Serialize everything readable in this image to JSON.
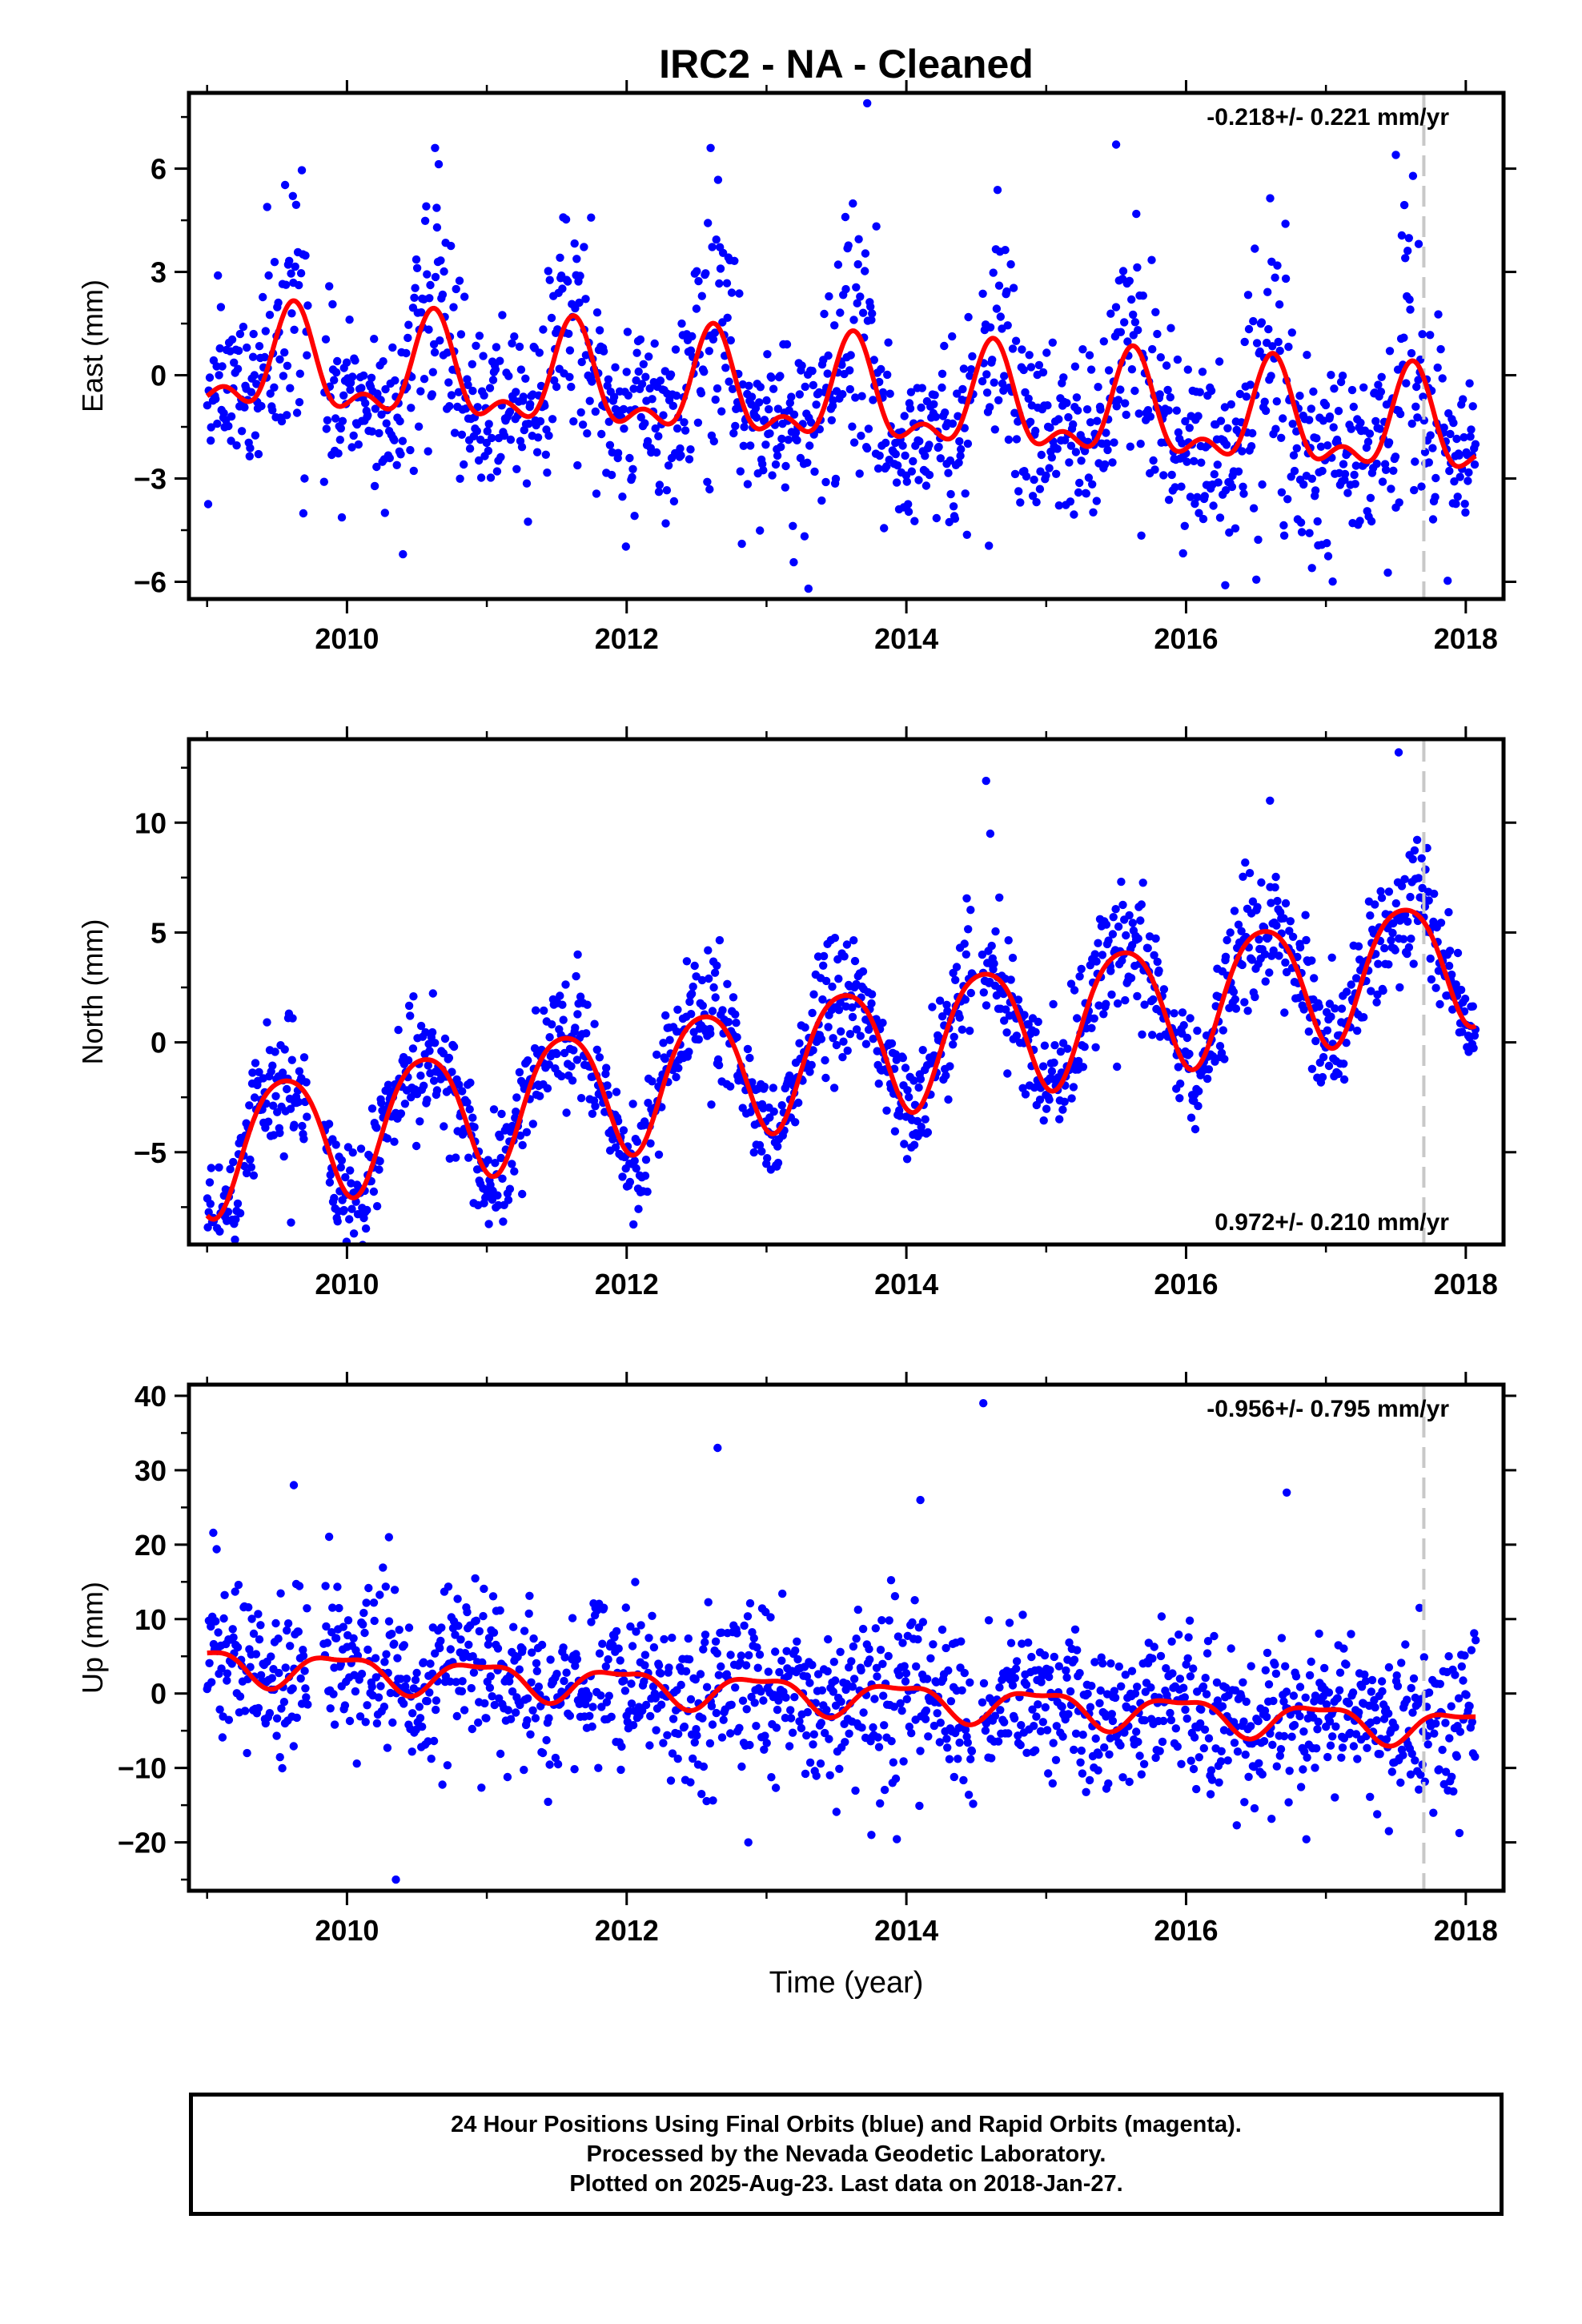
{
  "figure": {
    "title": "IRC2  - NA - Cleaned",
    "xlabel": "Time (year)"
  },
  "caption": {
    "lines": [
      "24 Hour Positions Using Final Orbits (blue) and Rapid Orbits (magenta).",
      "Processed by the Nevada Geodetic Laboratory.",
      "Plotted on 2025-Aug-23. Last data on 2018-Jan-27."
    ]
  },
  "colors": {
    "points": "#0000ff",
    "model": "#ff0000",
    "marker_line": "#c8c8c8",
    "frame": "#000000"
  },
  "chart_data": [
    {
      "type": "scatter",
      "title": "",
      "ylabel": "East (mm)",
      "xlabel": "",
      "rate": "-0.218+/- 0.221 mm/yr",
      "rate_position": "top-right",
      "xlim": [
        2008.87,
        2018.27
      ],
      "ylim": [
        -6.5,
        8.2
      ],
      "xticks": [
        2010,
        2012,
        2014,
        2016,
        2018
      ],
      "xtick_labels": [
        "2010",
        "2012",
        "2014",
        "2016",
        "2018"
      ],
      "yticks": [
        -6,
        -3,
        0,
        3,
        6
      ],
      "ytick_labels": [
        "−6",
        "−3",
        "0",
        "3",
        "6"
      ],
      "vline_x": 2017.7,
      "data_start": 2009.0,
      "data_end": 2018.07,
      "model": {
        "offset": 0.3,
        "trend": -0.218,
        "annual_amp": 1.3,
        "annual_phase_peak": 2009.62,
        "semiannual_amp": 0.7,
        "semiannual_phase_peak": 2009.12,
        "noise_sd": 1.25,
        "seasonal_noise_boost": 0.7
      },
      "gaps": [
        [
          2009.72,
          2009.83
        ],
        [
          2014.48,
          2014.54
        ]
      ],
      "outliers": [
        {
          "x": 2013.72,
          "y": 7.9
        },
        {
          "x": 2013.3,
          "y": -6.2
        },
        {
          "x": 2012.6,
          "y": 6.6
        },
        {
          "x": 2010.63,
          "y": 6.6
        },
        {
          "x": 2015.5,
          "y": 6.7
        },
        {
          "x": 2016.28,
          "y": -6.1
        },
        {
          "x": 2017.5,
          "y": 6.4
        },
        {
          "x": 2010.4,
          "y": -5.2
        },
        {
          "x": 2016.9,
          "y": -5.6
        }
      ]
    },
    {
      "type": "scatter",
      "title": "",
      "ylabel": "North (mm)",
      "xlabel": "",
      "rate": "0.972+/- 0.210 mm/yr",
      "rate_position": "bottom-right",
      "xlim": [
        2008.87,
        2018.27
      ],
      "ylim": [
        -9.2,
        13.8
      ],
      "xticks": [
        2010,
        2012,
        2014,
        2016,
        2018
      ],
      "xtick_labels": [
        "2010",
        "2012",
        "2014",
        "2016",
        "2018"
      ],
      "yticks": [
        -5,
        0,
        5,
        10
      ],
      "ytick_labels": [
        "−5",
        "0",
        "5",
        "10"
      ],
      "vline_x": 2017.7,
      "data_start": 2009.0,
      "data_end": 2018.07,
      "model": {
        "offset": -4.8,
        "trend": 0.972,
        "annual_amp": 2.9,
        "annual_phase_peak": 2009.55,
        "semiannual_amp": 0.4,
        "semiannual_phase_peak": 2009.3,
        "noise_sd": 1.2,
        "seasonal_noise_boost": 0.3
      },
      "gaps": [
        [
          2009.72,
          2009.83
        ],
        [
          2014.48,
          2014.54
        ]
      ],
      "outliers": [
        {
          "x": 2014.57,
          "y": 11.9
        },
        {
          "x": 2014.6,
          "y": 9.5
        },
        {
          "x": 2017.52,
          "y": 13.2
        },
        {
          "x": 2016.6,
          "y": 11.0
        },
        {
          "x": 2010.05,
          "y": -8.7
        },
        {
          "x": 2009.6,
          "y": -8.2
        },
        {
          "x": 2011.65,
          "y": 4.0
        }
      ]
    },
    {
      "type": "scatter",
      "title": "",
      "ylabel": "Up (mm)",
      "xlabel": "Time (year)",
      "rate": "-0.956+/- 0.795 mm/yr",
      "rate_position": "top-right",
      "xlim": [
        2008.87,
        2018.27
      ],
      "ylim": [
        -26.5,
        41.5
      ],
      "xticks": [
        2010,
        2012,
        2014,
        2016,
        2018
      ],
      "xtick_labels": [
        "2010",
        "2012",
        "2014",
        "2016",
        "2018"
      ],
      "yticks": [
        -20,
        -10,
        0,
        10,
        20,
        30,
        40
      ],
      "ytick_labels": [
        "−20",
        "−10",
        "0",
        "10",
        "20",
        "30",
        "40"
      ],
      "vline_x": 2017.7,
      "data_start": 2009.0,
      "data_end": 2018.07,
      "model": {
        "offset": 4.0,
        "trend": -0.956,
        "annual_amp": 2.2,
        "annual_phase_peak": 2009.95,
        "semiannual_amp": 0.8,
        "semiannual_phase_peak": 2009.2,
        "noise_sd": 5.0,
        "seasonal_noise_boost": 0.2
      },
      "gaps": [
        [
          2009.72,
          2009.83
        ],
        [
          2014.48,
          2014.54
        ]
      ],
      "outliers": [
        {
          "x": 2014.55,
          "y": 39.0
        },
        {
          "x": 2012.65,
          "y": 33.0
        },
        {
          "x": 2016.72,
          "y": 27.0
        },
        {
          "x": 2009.62,
          "y": 28.0
        },
        {
          "x": 2014.1,
          "y": 26.0
        },
        {
          "x": 2010.35,
          "y": -25.0
        },
        {
          "x": 2012.87,
          "y": -20.0
        },
        {
          "x": 2013.75,
          "y": -19.0
        },
        {
          "x": 2017.45,
          "y": -18.5
        },
        {
          "x": 2010.3,
          "y": 21.0
        }
      ]
    }
  ]
}
